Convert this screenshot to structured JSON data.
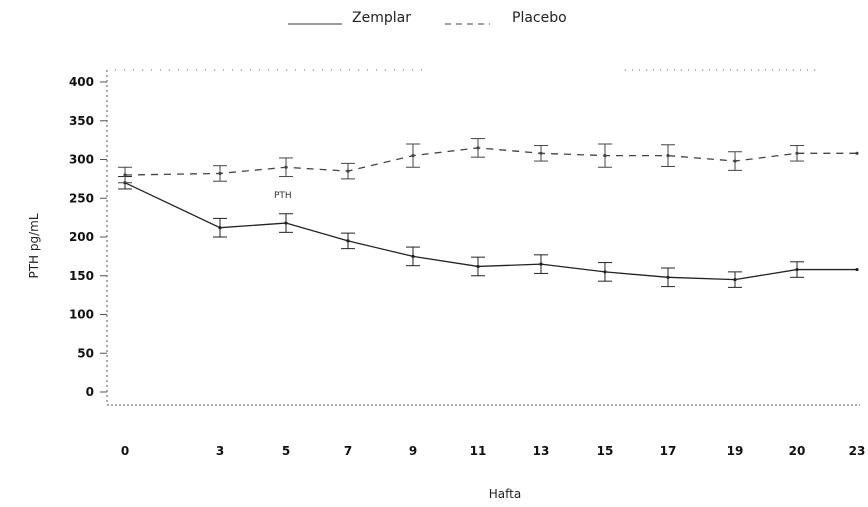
{
  "chart_data": {
    "type": "line",
    "title": "",
    "xlabel": "Hafta",
    "ylabel": "PTH pg/mL",
    "x": [
      0,
      3,
      5,
      7,
      9,
      11,
      13,
      15,
      17,
      19,
      20,
      23
    ],
    "xtick_labels": [
      "0",
      "3",
      "5",
      "7",
      "9",
      "11",
      "13",
      "15",
      "17",
      "19",
      "20",
      "23"
    ],
    "yticks": [
      0,
      50,
      100,
      150,
      200,
      250,
      300,
      350,
      400
    ],
    "ylim": [
      -20,
      420
    ],
    "grid": false,
    "legend_position": "top",
    "annotation": "PTH",
    "series": [
      {
        "name": "Zemplar",
        "style": "solid",
        "color": "#222222",
        "values": [
          270,
          212,
          218,
          195,
          175,
          162,
          165,
          155,
          148,
          145,
          158,
          158
        ],
        "error": [
          8,
          12,
          12,
          10,
          12,
          12,
          12,
          12,
          12,
          10,
          10,
          0
        ]
      },
      {
        "name": "Placebo",
        "style": "dashed",
        "color": "#444444",
        "values": [
          280,
          282,
          290,
          285,
          305,
          315,
          308,
          305,
          305,
          298,
          308,
          308
        ],
        "error": [
          10,
          10,
          12,
          10,
          15,
          12,
          10,
          15,
          14,
          12,
          10,
          0
        ]
      }
    ]
  }
}
